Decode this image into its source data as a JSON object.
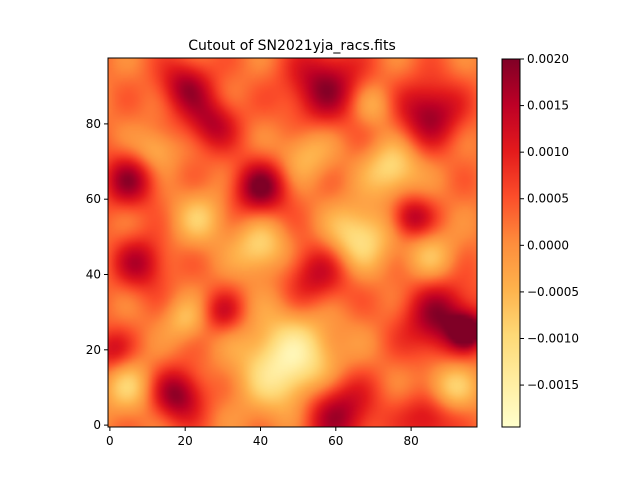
{
  "chart_data": {
    "type": "heatmap",
    "title": "Cutout of SN2021yja_racs.fits",
    "xlabel": "",
    "ylabel": "",
    "colormap": "YlOrRd",
    "xlim": [
      -0.5,
      97.5
    ],
    "ylim": [
      -0.5,
      97.5
    ],
    "x_ticks": [
      "0",
      "20",
      "40",
      "60",
      "80"
    ],
    "y_ticks": [
      "0",
      "20",
      "40",
      "60",
      "80"
    ],
    "colorbar": {
      "vmin": -0.00195,
      "vmax": 0.002,
      "ticks": [
        "0.0020",
        "0.0015",
        "0.0010",
        "0.0005",
        "0.0000",
        "−0.0005",
        "−0.0010",
        "−0.0015"
      ]
    },
    "image_size": [
      98,
      98
    ],
    "blobs": [
      {
        "x": 20,
        "y": 90,
        "sigma": 5,
        "value": 0.0014
      },
      {
        "x": 27,
        "y": 80,
        "sigma": 5,
        "value": 0.0013
      },
      {
        "x": 57,
        "y": 90,
        "sigma": 7,
        "value": 0.0016
      },
      {
        "x": 85,
        "y": 83,
        "sigma": 6,
        "value": 0.0016
      },
      {
        "x": 5,
        "y": 65,
        "sigma": 5,
        "value": 0.0015
      },
      {
        "x": 40,
        "y": 63,
        "sigma": 5,
        "value": 0.0018
      },
      {
        "x": 80,
        "y": 55,
        "sigma": 4,
        "value": 0.0014
      },
      {
        "x": 8,
        "y": 43,
        "sigma": 5,
        "value": 0.0013
      },
      {
        "x": 55,
        "y": 40,
        "sigma": 6,
        "value": 0.0012
      },
      {
        "x": 30,
        "y": 30,
        "sigma": 4,
        "value": 0.001
      },
      {
        "x": 88,
        "y": 28,
        "sigma": 7,
        "value": 0.0017
      },
      {
        "x": 95,
        "y": 25,
        "sigma": 3,
        "value": 0.0018
      },
      {
        "x": 0,
        "y": 20,
        "sigma": 4,
        "value": 0.001
      },
      {
        "x": 18,
        "y": 8,
        "sigma": 5,
        "value": 0.0017
      },
      {
        "x": 60,
        "y": 4,
        "sigma": 7,
        "value": 0.0017
      },
      {
        "x": 85,
        "y": 2,
        "sigma": 5,
        "value": 0.0012
      },
      {
        "x": 48,
        "y": 16,
        "sigma": 9,
        "value": -0.0019
      },
      {
        "x": 66,
        "y": 50,
        "sigma": 6,
        "value": -0.0014
      },
      {
        "x": 40,
        "y": 47,
        "sigma": 5,
        "value": -0.0012
      },
      {
        "x": 75,
        "y": 68,
        "sigma": 5,
        "value": -0.0013
      },
      {
        "x": 90,
        "y": 10,
        "sigma": 5,
        "value": -0.0012
      },
      {
        "x": 5,
        "y": 10,
        "sigma": 5,
        "value": -0.001
      },
      {
        "x": 12,
        "y": 73,
        "sigma": 4,
        "value": -0.0008
      },
      {
        "x": 24,
        "y": 55,
        "sigma": 5,
        "value": -0.0009
      },
      {
        "x": 52,
        "y": 72,
        "sigma": 5,
        "value": -0.0008
      },
      {
        "x": 85,
        "y": 45,
        "sigma": 5,
        "value": -0.0008
      },
      {
        "x": 20,
        "y": 28,
        "sigma": 4,
        "value": -0.0008
      },
      {
        "x": 70,
        "y": 85,
        "sigma": 4,
        "value": -0.0007
      }
    ]
  }
}
